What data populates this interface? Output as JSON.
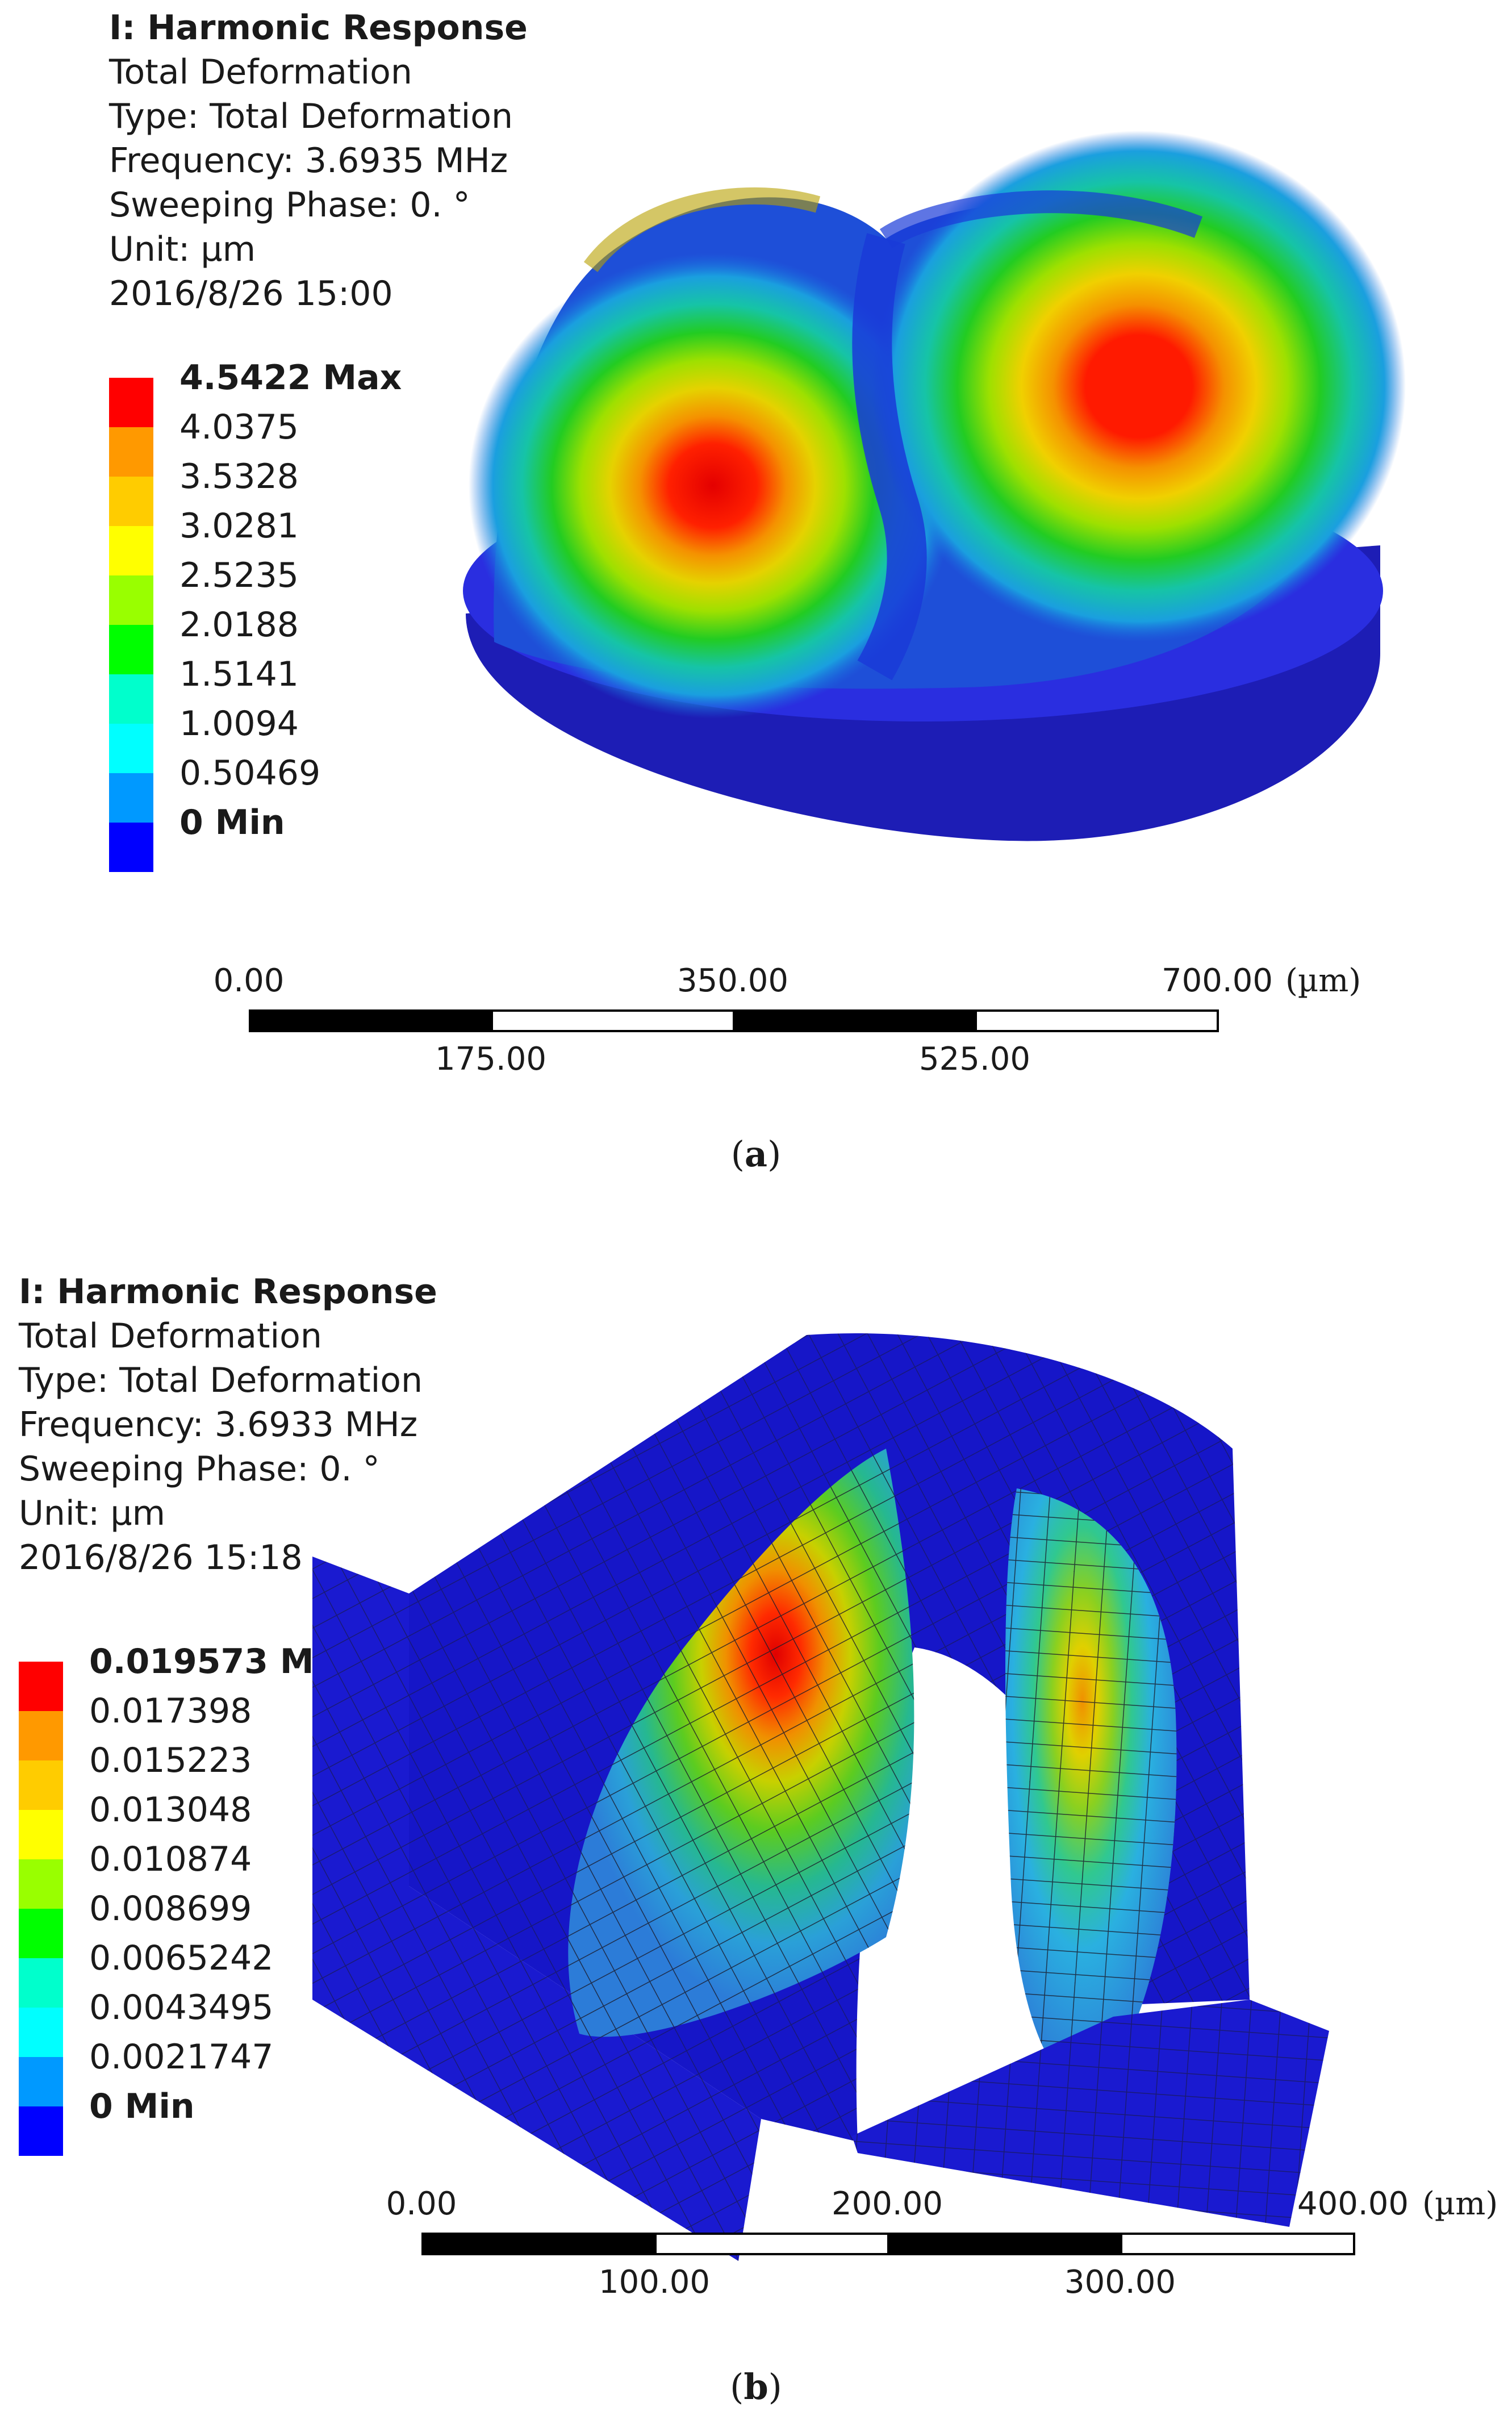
{
  "panels": [
    {
      "id": "a",
      "title": "I: Harmonic Response",
      "lines": [
        "Total Deformation",
        "Type: Total Deformation",
        "Frequency: 3.6935 MHz",
        "Sweeping Phase: 0. °",
        "Unit: µm",
        "2016/8/26 15:00"
      ],
      "legend": [
        "4.5422 Max",
        "4.0375",
        "3.5328",
        "3.0281",
        "2.5235",
        "2.0188",
        "1.5141",
        "1.0094",
        "0.50469",
        "0 Min"
      ],
      "scale": {
        "top_labels": [
          "0.00",
          "350.00",
          "700.00"
        ],
        "bottom_labels": [
          "175.00",
          "525.00"
        ],
        "unit": "(µm)"
      },
      "caption": {
        "open": "(",
        "letter": "a",
        "close": ")"
      }
    },
    {
      "id": "b",
      "title": "I: Harmonic Response",
      "lines": [
        "Total Deformation",
        "Type: Total Deformation",
        "Frequency: 3.6933 MHz",
        "Sweeping Phase: 0. °",
        "Unit: µm",
        "2016/8/26 15:18"
      ],
      "legend": [
        "0.019573 Max",
        "0.017398",
        "0.015223",
        "0.013048",
        "0.010874",
        "0.008699",
        "0.0065242",
        "0.0043495",
        "0.0021747",
        "0 Min"
      ],
      "scale": {
        "top_labels": [
          "0.00",
          "200.00",
          "400.00"
        ],
        "bottom_labels": [
          "100.00",
          "300.00"
        ],
        "unit": "(µm)"
      },
      "caption": {
        "open": "(",
        "letter": "b",
        "close": ")"
      }
    }
  ],
  "colormap": [
    "#ff0000",
    "#ff9900",
    "#ffcc00",
    "#ffff00",
    "#99ff00",
    "#00ff00",
    "#00ffcc",
    "#00ffff",
    "#0099ff",
    "#0000ff"
  ]
}
